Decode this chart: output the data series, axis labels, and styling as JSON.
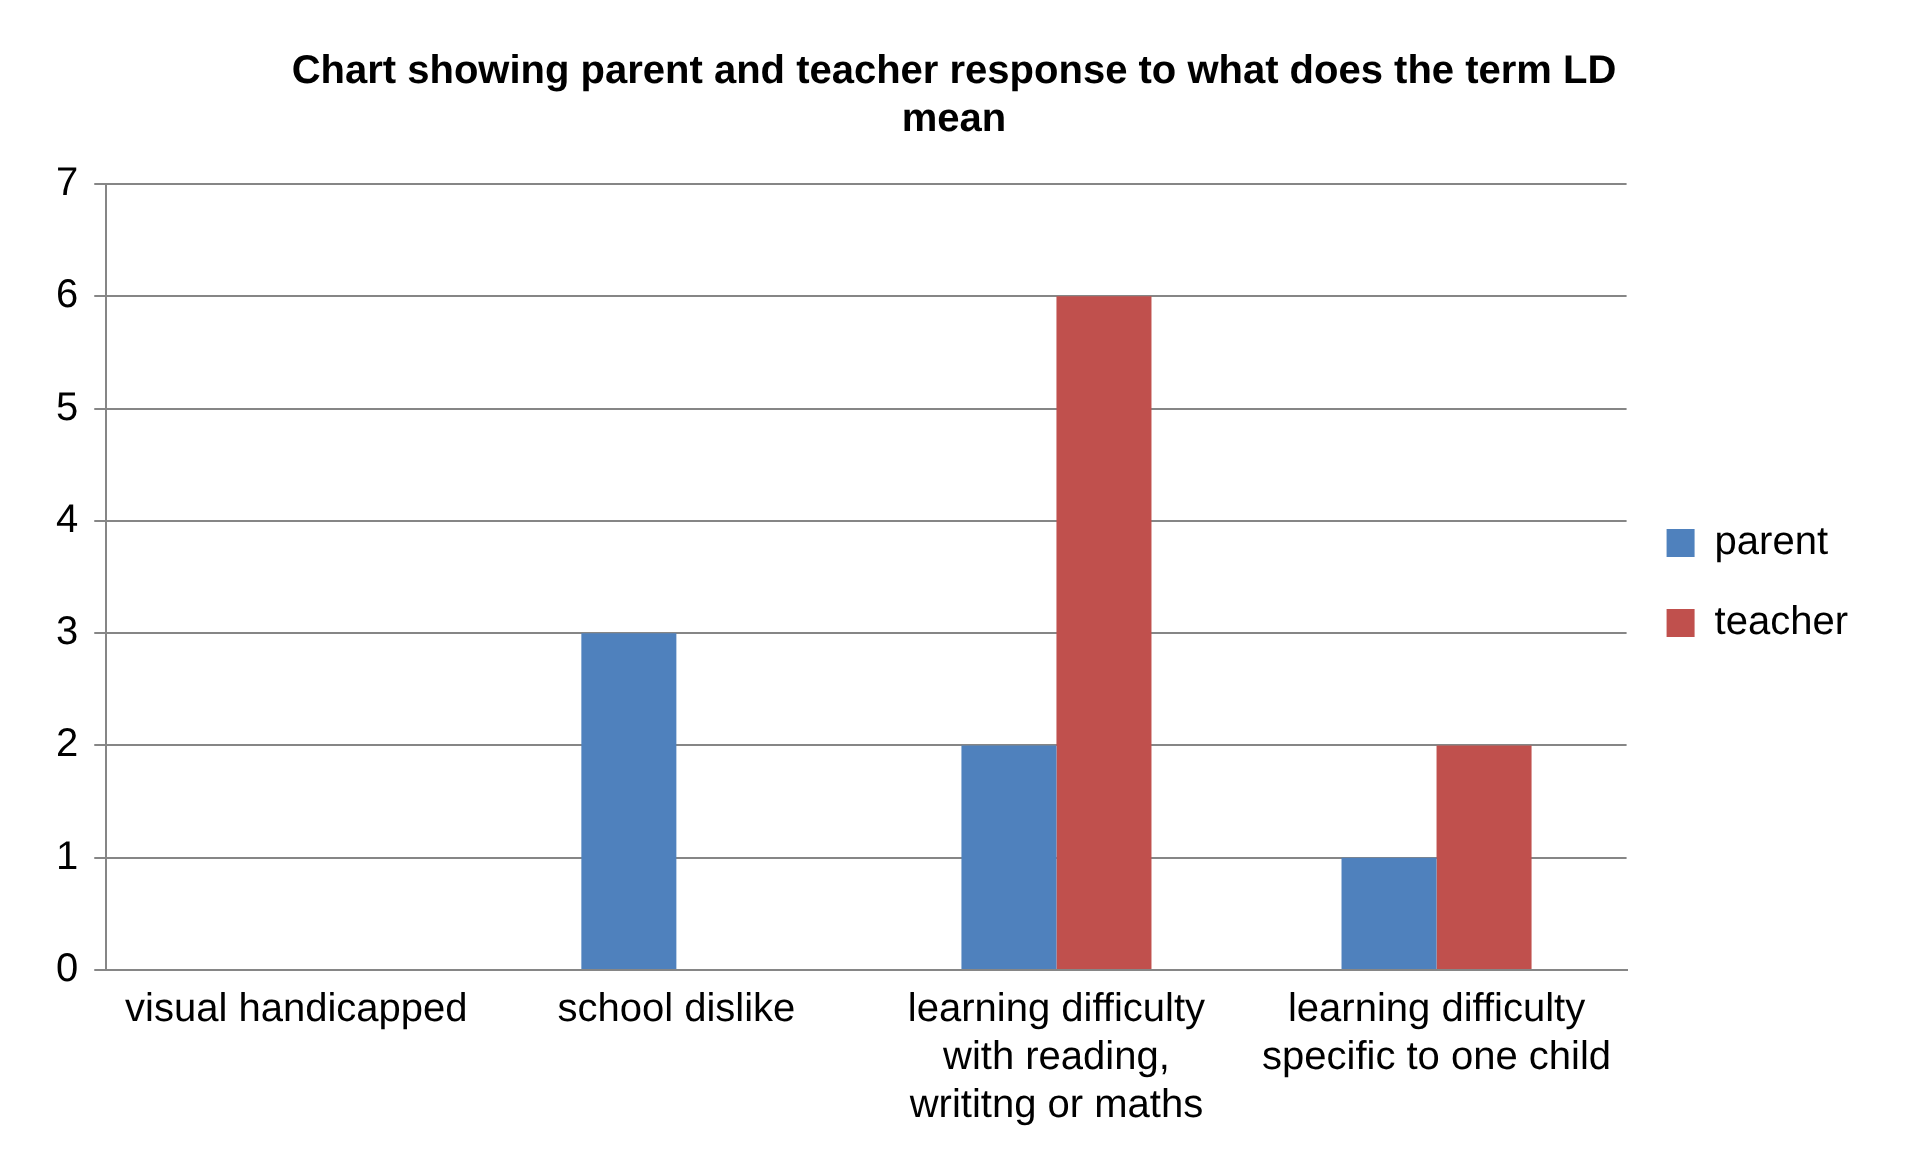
{
  "chart_data": {
    "type": "bar",
    "title": "Chart showing parent and teacher response to what does the term LD mean",
    "categories": [
      "visual handicapped",
      "school dislike",
      "learning difficulty with reading, writitng or maths",
      "learning difficulty specific to one child"
    ],
    "series": [
      {
        "name": "parent",
        "color": "#4f81bd",
        "values": [
          0,
          3,
          2,
          1
        ]
      },
      {
        "name": "teacher",
        "color": "#c0504d",
        "values": [
          0,
          0,
          6,
          2
        ]
      }
    ],
    "ylim": [
      0,
      7
    ],
    "yticks": [
      0,
      1,
      2,
      3,
      4,
      5,
      6,
      7
    ],
    "grid": "y",
    "legend": "right"
  }
}
